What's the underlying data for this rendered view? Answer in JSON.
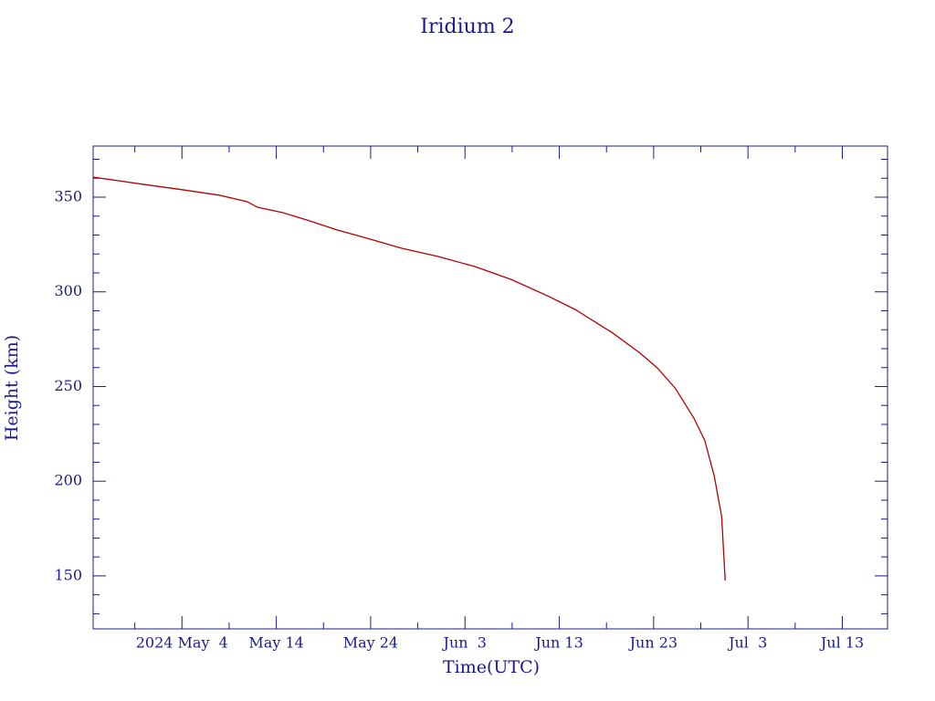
{
  "chart_data": {
    "type": "line",
    "title": "Iridium 2",
    "x_label": "Time(UTC)",
    "y_label": "Height (km)",
    "x": [
      "2024-04-24T14:00",
      "2024-04-29T07:00",
      "2024-05-04T02:00",
      "2024-05-08T00:00",
      "2024-05-10T22:00",
      "2024-05-12T00:00",
      "2024-05-14T17:00",
      "2024-05-17T14:00",
      "2024-05-20T12:00",
      "2024-05-24T00:00",
      "2024-05-27T07:00",
      "2024-05-31T05:00",
      "2024-06-04T02:00",
      "2024-06-07T22:00",
      "2024-06-11T19:00",
      "2024-06-14T17:00",
      "2024-06-18T14:00",
      "2024-06-21T12:00",
      "2024-06-23T10:00",
      "2024-06-25T07:00",
      "2024-06-27T07:00",
      "2024-06-28T10:00",
      "2024-06-29T10:00",
      "2024-06-30T05:00",
      "2024-06-30T14:00"
    ],
    "series": [
      {
        "color": "#b00000",
        "values": [
          360.6,
          357.2,
          353.9,
          351,
          347.6,
          344.7,
          341.8,
          337.4,
          332.6,
          327.8,
          323,
          318.6,
          313.3,
          306.5,
          297.8,
          290.6,
          278.5,
          267.9,
          259.7,
          249.1,
          233.1,
          221.5,
          202.9,
          181.4,
          147.6
        ]
      }
    ],
    "xlim": [
      "2024-04-24T14:00",
      "2024-07-17T19:00"
    ],
    "xticks": [
      {
        "value": "2024-05-04",
        "label": "2024 May  4"
      },
      {
        "value": "2024-05-14",
        "label": "May 14"
      },
      {
        "value": "2024-05-24",
        "label": "May 24"
      },
      {
        "value": "2024-06-03",
        "label": "Jun  3"
      },
      {
        "value": "2024-06-13",
        "label": "Jun 13"
      },
      {
        "value": "2024-06-23",
        "label": "Jun 23"
      },
      {
        "value": "2024-07-03",
        "label": "Jul  3"
      },
      {
        "value": "2024-07-13",
        "label": "Jul 13"
      }
    ],
    "xminorticks": [
      "2024-04-29",
      "2024-05-09",
      "2024-05-19",
      "2024-05-29",
      "2024-06-08",
      "2024-06-18",
      "2024-06-28",
      "2024-07-08"
    ],
    "ylim": [
      122,
      377
    ],
    "yticks": [
      150,
      200,
      250,
      300,
      350
    ],
    "yminorticks": [
      130,
      140,
      160,
      170,
      180,
      190,
      210,
      220,
      230,
      240,
      260,
      270,
      280,
      290,
      310,
      320,
      330,
      340,
      360,
      370
    ]
  }
}
